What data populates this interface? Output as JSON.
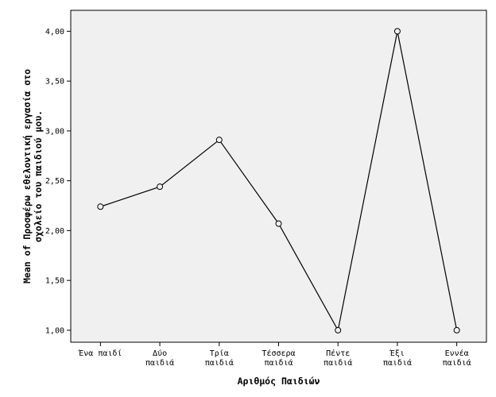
{
  "chart_data": {
    "type": "line",
    "categories": [
      [
        "Ένα παιδί"
      ],
      [
        "Δύο",
        "παιδιά"
      ],
      [
        "Τρία",
        "παιδιά"
      ],
      [
        "Τέσσερα",
        "παιδιά"
      ],
      [
        "Πέντε",
        "παιδιά"
      ],
      [
        "Έξι",
        "παιδιά"
      ],
      [
        "Εννέα",
        "παιδιά"
      ]
    ],
    "values": [
      2.24,
      2.44,
      2.91,
      2.07,
      1.0,
      4.0,
      1.0
    ],
    "xlabel": "Αριθμός Παιδιών",
    "ylabel": [
      "Mean of Προσφέρω εθελοντική εργασία στο",
      "σχολείο του παιδιού μου."
    ],
    "yticks": [
      1.0,
      1.5,
      2.0,
      2.5,
      3.0,
      3.5,
      4.0
    ],
    "ytick_labels": [
      "1,00",
      "1,50",
      "2,00",
      "2,50",
      "3,00",
      "3,50",
      "4,00"
    ],
    "ylim": [
      0.88,
      4.21
    ],
    "grid": false,
    "colors": {
      "plot_background": "#f0f0f0",
      "line": "#000000",
      "marker_fill": "#f0f0f0"
    }
  }
}
